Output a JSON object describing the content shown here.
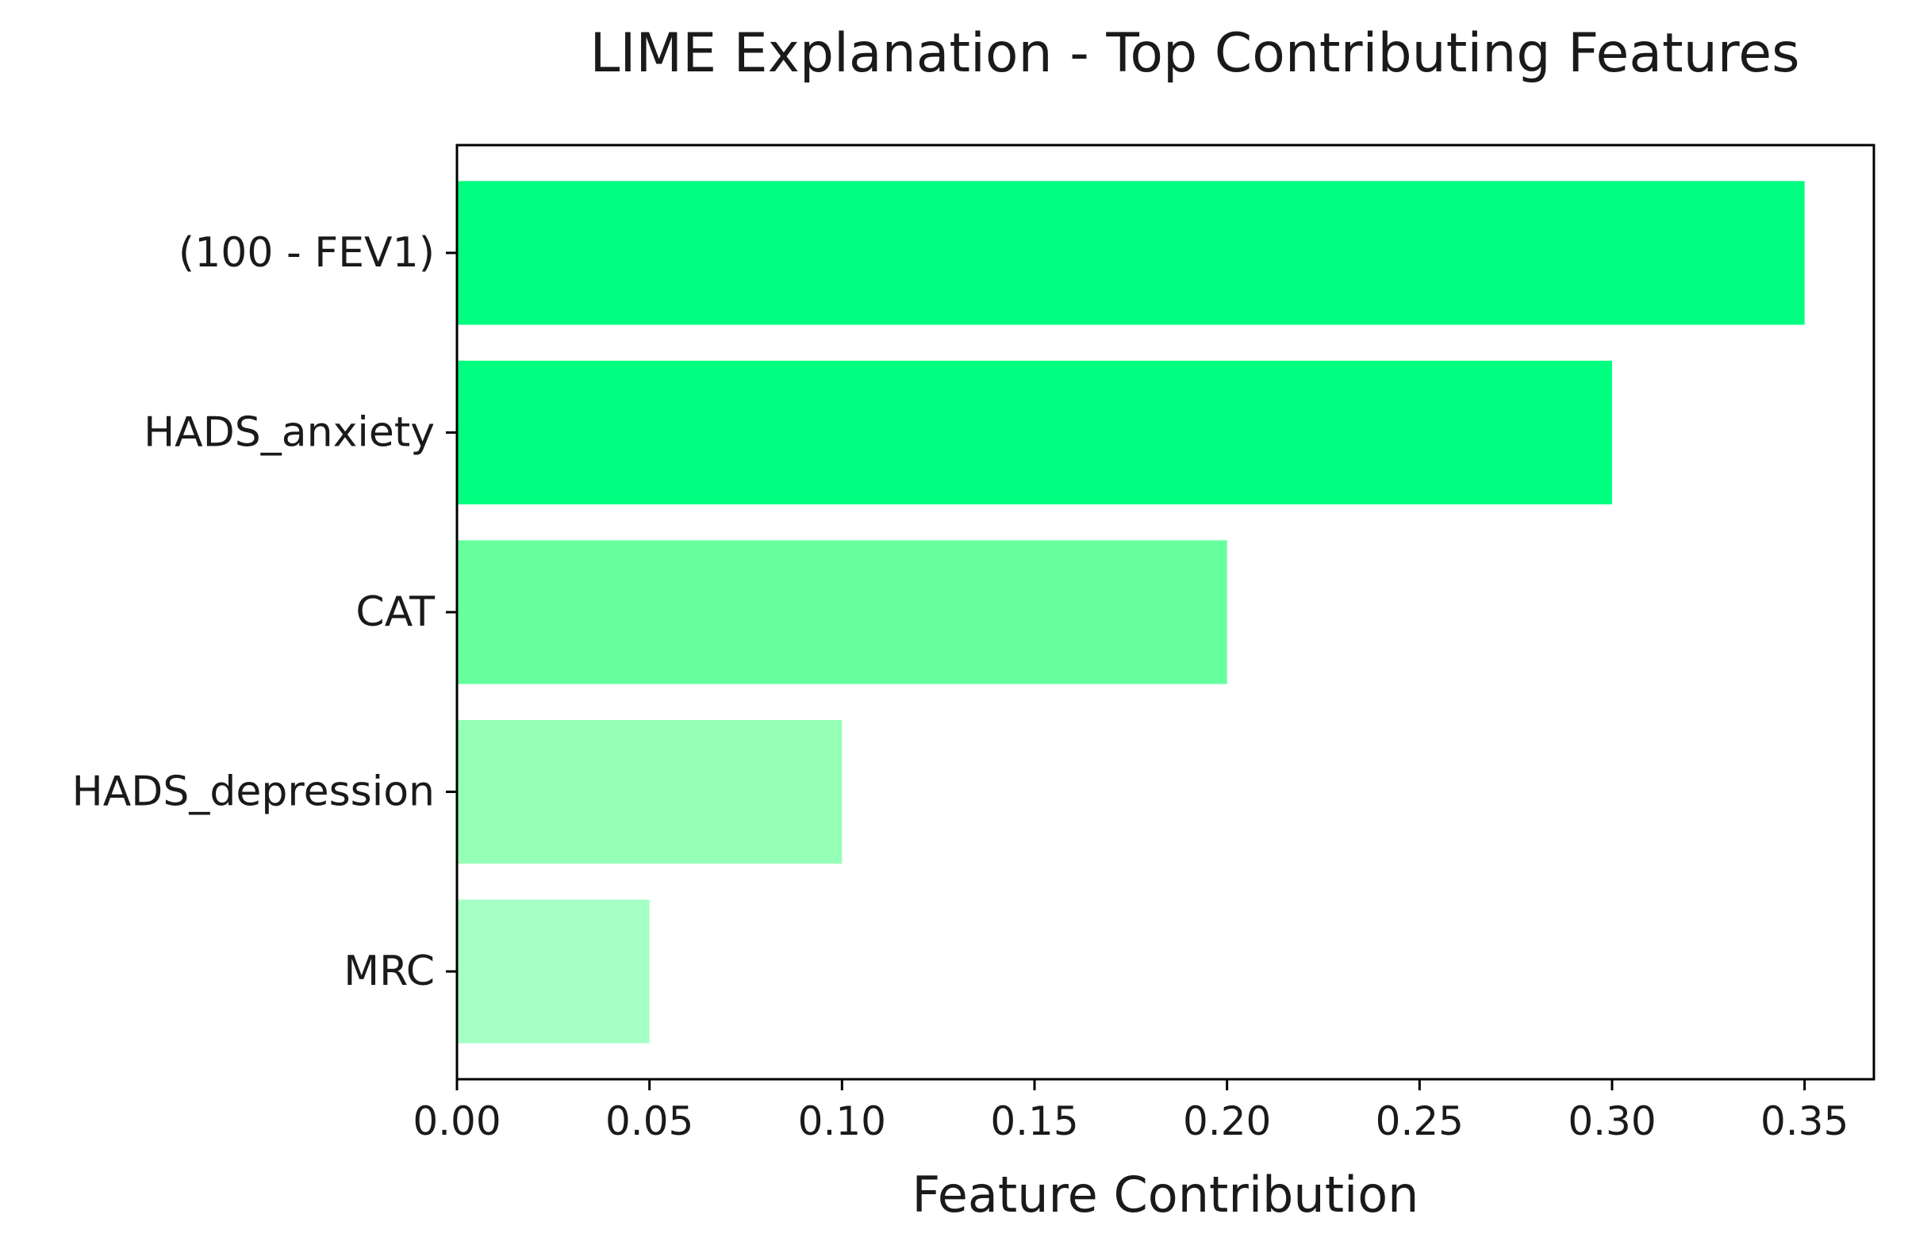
{
  "chart_data": {
    "type": "bar",
    "orientation": "horizontal",
    "title": "LIME Explanation - Top Contributing Features",
    "xlabel": "Feature Contribution",
    "ylabel": "",
    "categories": [
      "(100 - FEV1)",
      "HADS_anxiety",
      "CAT",
      "HADS_depression",
      "MRC"
    ],
    "values": [
      0.35,
      0.3,
      0.2,
      0.1,
      0.05
    ],
    "colors": [
      "#00ff80",
      "#00ff80",
      "#66ff9f",
      "#96ffb6",
      "#a6ffc4"
    ],
    "xlim": [
      0,
      0.368
    ],
    "xticks": [
      "0.00",
      "0.05",
      "0.10",
      "0.15",
      "0.20",
      "0.25",
      "0.30",
      "0.35"
    ],
    "xtick_values": [
      0,
      0.05,
      0.1,
      0.15,
      0.2,
      0.25,
      0.3,
      0.35
    ],
    "grid": false,
    "legend": "none"
  }
}
